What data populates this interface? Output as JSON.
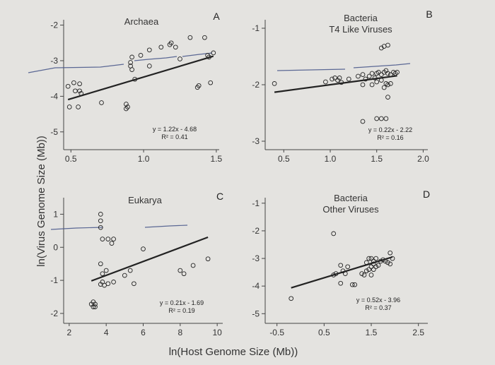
{
  "figure": {
    "xlabel": "ln(Host Genome Size (Mb))",
    "ylabel": "ln(Virus Genome Size (Mb))"
  },
  "chart_data": [
    {
      "id": "A",
      "type": "scatter",
      "letter": "A",
      "title": [
        "Archaea"
      ],
      "xlim": [
        0.45,
        1.52
      ],
      "ylim": [
        -5.5,
        -1.85
      ],
      "xticks": [
        0.5,
        1.0,
        1.5
      ],
      "xtick_labels": [
        "0.5",
        "1.0",
        "1.5"
      ],
      "yticks": [
        -5,
        -4,
        -3,
        -2
      ],
      "ytick_labels": [
        "-5",
        "-4",
        "-3",
        "-2"
      ],
      "fit": {
        "slope": 1.22,
        "intercept": -4.68
      },
      "equation": [
        "y = 1.22x - 4.68",
        "R² = 0.41"
      ],
      "points": [
        [
          0.48,
          -3.72
        ],
        [
          0.52,
          -3.62
        ],
        [
          0.56,
          -3.65
        ],
        [
          0.53,
          -3.85
        ],
        [
          0.57,
          -3.92
        ],
        [
          0.56,
          -3.85
        ],
        [
          0.49,
          -4.3
        ],
        [
          0.55,
          -4.3
        ],
        [
          0.71,
          -4.18
        ],
        [
          0.88,
          -4.22
        ],
        [
          0.89,
          -4.3
        ],
        [
          0.88,
          -4.35
        ],
        [
          0.94,
          -3.52
        ],
        [
          0.92,
          -3.25
        ],
        [
          0.91,
          -3.05
        ],
        [
          0.91,
          -3.15
        ],
        [
          0.92,
          -2.9
        ],
        [
          1.04,
          -3.15
        ],
        [
          0.98,
          -2.85
        ],
        [
          1.04,
          -2.7
        ],
        [
          1.12,
          -2.62
        ],
        [
          1.18,
          -2.55
        ],
        [
          1.19,
          -2.5
        ],
        [
          1.22,
          -2.62
        ],
        [
          1.25,
          -2.95
        ],
        [
          1.32,
          -2.35
        ],
        [
          1.42,
          -2.35
        ],
        [
          1.44,
          -2.85
        ],
        [
          1.45,
          -2.9
        ],
        [
          1.38,
          -3.7
        ],
        [
          1.37,
          -3.75
        ],
        [
          1.46,
          -3.62
        ],
        [
          1.48,
          -2.78
        ]
      ]
    },
    {
      "id": "B",
      "type": "scatter",
      "letter": "B",
      "title": [
        "Bacteria",
        "T4 Like Viruses"
      ],
      "xlim": [
        0.3,
        2.05
      ],
      "ylim": [
        -3.15,
        -0.85
      ],
      "xticks": [
        0.5,
        1.0,
        1.5,
        2.0
      ],
      "xtick_labels": [
        "0.5",
        "1.0",
        "1.5",
        "2.0"
      ],
      "yticks": [
        -3,
        -2,
        -1
      ],
      "ytick_labels": [
        "-3",
        "-2",
        "-1"
      ],
      "fit": {
        "slope": 0.22,
        "intercept": -2.22
      },
      "equation": [
        "y = 0.22x - 2.22",
        "R² = 0.16"
      ],
      "points": [
        [
          0.4,
          -1.98
        ],
        [
          0.95,
          -1.95
        ],
        [
          1.02,
          -1.9
        ],
        [
          1.05,
          -1.88
        ],
        [
          1.08,
          -1.92
        ],
        [
          1.1,
          -1.88
        ],
        [
          1.12,
          -1.96
        ],
        [
          1.2,
          -1.9
        ],
        [
          1.3,
          -1.85
        ],
        [
          1.35,
          -1.82
        ],
        [
          1.38,
          -1.9
        ],
        [
          1.42,
          -1.85
        ],
        [
          1.45,
          -1.8
        ],
        [
          1.48,
          -1.88
        ],
        [
          1.5,
          -1.8
        ],
        [
          1.52,
          -1.78
        ],
        [
          1.55,
          -1.82
        ],
        [
          1.58,
          -1.78
        ],
        [
          1.6,
          -1.75
        ],
        [
          1.62,
          -1.8
        ],
        [
          1.65,
          -1.82
        ],
        [
          1.68,
          -1.78
        ],
        [
          1.7,
          -1.8
        ],
        [
          1.72,
          -1.78
        ],
        [
          1.5,
          -1.95
        ],
        [
          1.55,
          -1.92
        ],
        [
          1.6,
          -1.98
        ],
        [
          1.62,
          -2.0
        ],
        [
          1.58,
          -2.05
        ],
        [
          1.65,
          -1.98
        ],
        [
          1.55,
          -1.35
        ],
        [
          1.58,
          -1.32
        ],
        [
          1.62,
          -1.3
        ],
        [
          1.45,
          -2.0
        ],
        [
          1.35,
          -2.0
        ],
        [
          1.62,
          -2.22
        ],
        [
          1.5,
          -2.6
        ],
        [
          1.55,
          -2.6
        ],
        [
          1.6,
          -2.6
        ],
        [
          1.35,
          -2.65
        ]
      ]
    },
    {
      "id": "C",
      "type": "scatter",
      "letter": "C",
      "title": [
        "Eukarya"
      ],
      "xlim": [
        1.7,
        10.3
      ],
      "ylim": [
        -2.3,
        1.5
      ],
      "xticks": [
        2,
        4,
        6,
        8,
        10
      ],
      "xtick_labels": [
        "2",
        "4",
        "6",
        "8",
        "10"
      ],
      "yticks": [
        -2,
        -1,
        0,
        1
      ],
      "ytick_labels": [
        "-2",
        "-1",
        "0",
        "1"
      ],
      "fit": {
        "slope": 0.21,
        "intercept": -1.69
      },
      "equation": [
        "y = 0.21x - 1.69",
        "R² = 0.19"
      ],
      "points": [
        [
          3.7,
          1.0
        ],
        [
          3.7,
          0.8
        ],
        [
          3.7,
          0.6
        ],
        [
          3.8,
          0.25
        ],
        [
          4.1,
          0.25
        ],
        [
          4.4,
          0.25
        ],
        [
          4.3,
          0.12
        ],
        [
          3.2,
          -1.72
        ],
        [
          3.3,
          -1.8
        ],
        [
          3.4,
          -1.72
        ],
        [
          3.4,
          -1.8
        ],
        [
          3.3,
          -1.65
        ],
        [
          3.7,
          -0.5
        ],
        [
          3.8,
          -0.8
        ],
        [
          4.0,
          -0.7
        ],
        [
          3.8,
          -1.05
        ],
        [
          3.9,
          -1.15
        ],
        [
          4.1,
          -1.1
        ],
        [
          3.7,
          -1.12
        ],
        [
          4.4,
          -1.05
        ],
        [
          5.0,
          -0.85
        ],
        [
          5.3,
          -0.7
        ],
        [
          5.5,
          -1.1
        ],
        [
          6.0,
          -0.05
        ],
        [
          8.0,
          -0.7
        ],
        [
          8.2,
          -0.8
        ],
        [
          8.7,
          -0.55
        ],
        [
          9.5,
          -0.35
        ]
      ]
    },
    {
      "id": "D",
      "type": "scatter",
      "letter": "D",
      "title": [
        "Bacteria",
        "Other Viruses"
      ],
      "xlim": [
        -0.75,
        2.7
      ],
      "ylim": [
        -5.35,
        -0.8
      ],
      "xticks": [
        -0.5,
        0.5,
        1.5,
        2.5
      ],
      "xtick_labels": [
        "-0.5",
        "0.5",
        "1.5",
        "2.5"
      ],
      "yticks": [
        -5,
        -4,
        -3,
        -2,
        -1
      ],
      "ytick_labels": [
        "-5",
        "-4",
        "-3",
        "-2",
        "-1"
      ],
      "fit": {
        "slope": 0.52,
        "intercept": -3.96
      },
      "equation": [
        "y = 0.52x - 3.96",
        "R² = 0.37"
      ],
      "points": [
        [
          -0.2,
          -4.45
        ],
        [
          0.7,
          -2.1
        ],
        [
          0.85,
          -3.25
        ],
        [
          1.0,
          -3.3
        ],
        [
          0.9,
          -3.45
        ],
        [
          0.95,
          -3.55
        ],
        [
          0.7,
          -3.6
        ],
        [
          0.75,
          -3.55
        ],
        [
          0.85,
          -3.9
        ],
        [
          1.1,
          -3.95
        ],
        [
          1.15,
          -3.95
        ],
        [
          1.3,
          -3.55
        ],
        [
          1.35,
          -3.6
        ],
        [
          1.4,
          -3.45
        ],
        [
          1.45,
          -3.4
        ],
        [
          1.5,
          -3.0
        ],
        [
          1.55,
          -3.1
        ],
        [
          1.6,
          -3.0
        ],
        [
          1.65,
          -3.25
        ],
        [
          1.7,
          -3.1
        ],
        [
          1.75,
          -3.05
        ],
        [
          1.8,
          -3.1
        ],
        [
          1.85,
          -3.15
        ],
        [
          1.9,
          -3.2
        ],
        [
          1.95,
          -3.0
        ],
        [
          1.5,
          -3.6
        ],
        [
          1.55,
          -3.4
        ],
        [
          1.6,
          -3.3
        ],
        [
          1.9,
          -2.8
        ],
        [
          1.4,
          -3.15
        ],
        [
          1.5,
          -3.3
        ],
        [
          1.55,
          -3.2
        ],
        [
          1.45,
          -3.0
        ]
      ]
    }
  ]
}
